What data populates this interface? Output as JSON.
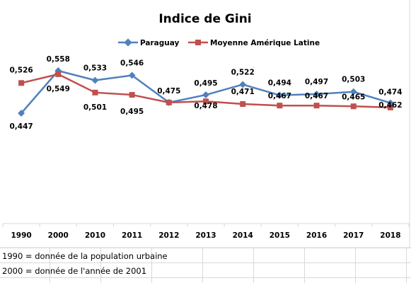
{
  "chart_data": {
    "type": "line",
    "title": "Indice de Gini",
    "categories": [
      "1990",
      "2000",
      "2010",
      "2011",
      "2012",
      "2013",
      "2014",
      "2015",
      "2016",
      "2017",
      "2018"
    ],
    "series": [
      {
        "name": "Paraguay",
        "color": "#4f81bd",
        "marker": "diamond",
        "values": [
          0.447,
          0.558,
          0.533,
          0.546,
          0.475,
          0.495,
          0.522,
          0.494,
          0.497,
          0.503,
          0.474
        ],
        "labels": [
          "0,447",
          "0,558",
          "0,533",
          "0,546",
          "0,475",
          "0,495",
          "0,522",
          "0,494",
          "0,497",
          "0,503",
          "0,474"
        ]
      },
      {
        "name": "Moyenne Amérique Latine",
        "color": "#c0504d",
        "marker": "square",
        "values": [
          0.526,
          0.549,
          0.501,
          0.495,
          0.475,
          0.478,
          0.471,
          0.467,
          0.467,
          0.465,
          0.462
        ],
        "labels": [
          "0,526",
          "0,549",
          "0,501",
          "0,495",
          "",
          "0,478",
          "0,471",
          "0,467",
          "0,467",
          "0,465",
          "0,462"
        ]
      }
    ],
    "legend": "top",
    "grid": false
  },
  "notes": [
    "1990 = donnée de la population urbaine",
    "2000 = donnée de l'année de 2001"
  ]
}
